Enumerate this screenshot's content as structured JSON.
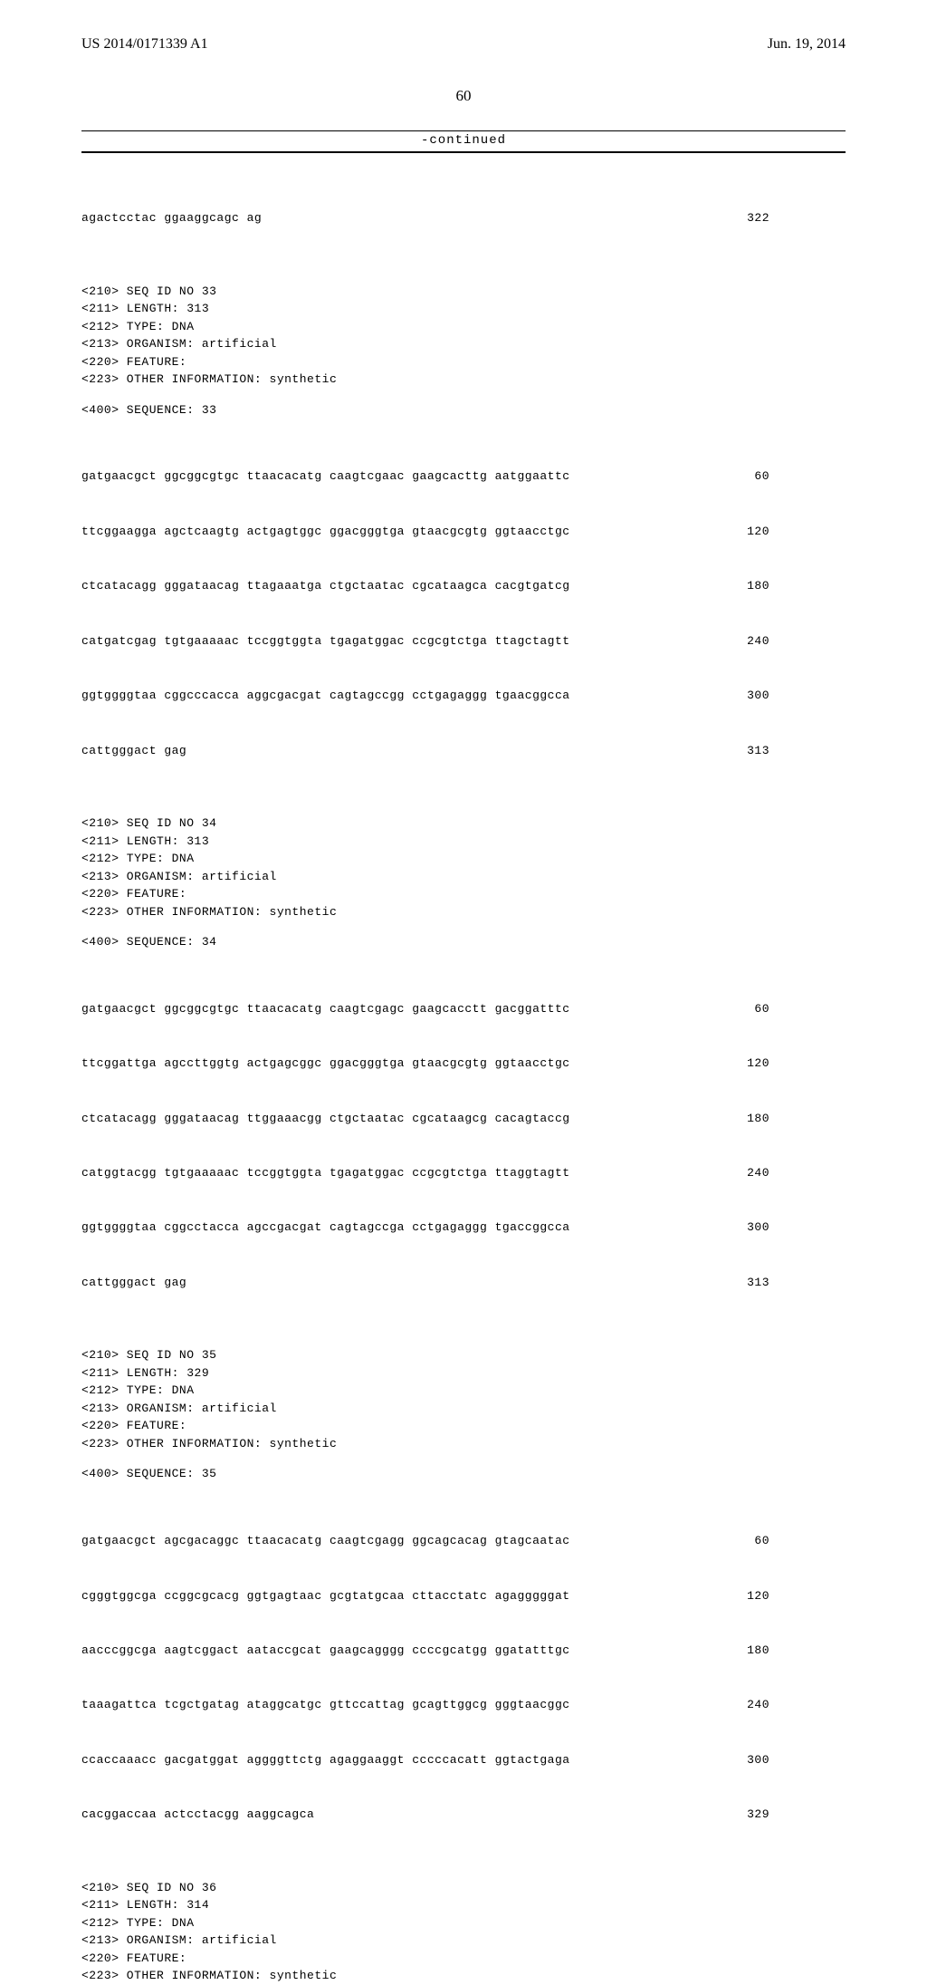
{
  "header": {
    "pub_number": "US 2014/0171339 A1",
    "date": "Jun. 19, 2014"
  },
  "page_number": "60",
  "continued_label": "-continued",
  "sequences": [
    {
      "lines": [
        {
          "seq": "agactcctac ggaaggcagc ag",
          "pos": "322"
        }
      ]
    },
    {
      "meta": [
        "<210> SEQ ID NO 33",
        "<211> LENGTH: 313",
        "<212> TYPE: DNA",
        "<213> ORGANISM: artificial",
        "<220> FEATURE:",
        "<223> OTHER INFORMATION: synthetic"
      ],
      "seq_label": "<400> SEQUENCE: 33",
      "lines": [
        {
          "seq": "gatgaacgct ggcggcgtgc ttaacacatg caagtcgaac gaagcacttg aatggaattc",
          "pos": "60"
        },
        {
          "seq": "ttcggaagga agctcaagtg actgagtggc ggacgggtga gtaacgcgtg ggtaacctgc",
          "pos": "120"
        },
        {
          "seq": "ctcatacagg gggataacag ttagaaatga ctgctaatac cgcataagca cacgtgatcg",
          "pos": "180"
        },
        {
          "seq": "catgatcgag tgtgaaaaac tccggtggta tgagatggac ccgcgtctga ttagctagtt",
          "pos": "240"
        },
        {
          "seq": "ggtggggtaa cggcccacca aggcgacgat cagtagccgg cctgagaggg tgaacggcca",
          "pos": "300"
        },
        {
          "seq": "cattgggact gag",
          "pos": "313"
        }
      ]
    },
    {
      "meta": [
        "<210> SEQ ID NO 34",
        "<211> LENGTH: 313",
        "<212> TYPE: DNA",
        "<213> ORGANISM: artificial",
        "<220> FEATURE:",
        "<223> OTHER INFORMATION: synthetic"
      ],
      "seq_label": "<400> SEQUENCE: 34",
      "lines": [
        {
          "seq": "gatgaacgct ggcggcgtgc ttaacacatg caagtcgagc gaagcacctt gacggatttc",
          "pos": "60"
        },
        {
          "seq": "ttcggattga agccttggtg actgagcggc ggacgggtga gtaacgcgtg ggtaacctgc",
          "pos": "120"
        },
        {
          "seq": "ctcatacagg gggataacag ttggaaacgg ctgctaatac cgcataagcg cacagtaccg",
          "pos": "180"
        },
        {
          "seq": "catggtacgg tgtgaaaaac tccggtggta tgagatggac ccgcgtctga ttaggtagtt",
          "pos": "240"
        },
        {
          "seq": "ggtggggtaa cggcctacca agccgacgat cagtagccga cctgagaggg tgaccggcca",
          "pos": "300"
        },
        {
          "seq": "cattgggact gag",
          "pos": "313"
        }
      ]
    },
    {
      "meta": [
        "<210> SEQ ID NO 35",
        "<211> LENGTH: 329",
        "<212> TYPE: DNA",
        "<213> ORGANISM: artificial",
        "<220> FEATURE:",
        "<223> OTHER INFORMATION: synthetic"
      ],
      "seq_label": "<400> SEQUENCE: 35",
      "lines": [
        {
          "seq": "gatgaacgct agcgacaggc ttaacacatg caagtcgagg ggcagcacag gtagcaatac",
          "pos": "60"
        },
        {
          "seq": "cgggtggcga ccggcgcacg ggtgagtaac gcgtatgcaa cttacctatc agagggggat",
          "pos": "120"
        },
        {
          "seq": "aacccggcga aagtcggact aataccgcat gaagcagggg ccccgcatgg ggatatttgc",
          "pos": "180"
        },
        {
          "seq": "taaagattca tcgctgatag ataggcatgc gttccattag gcagttggcg gggtaacggc",
          "pos": "240"
        },
        {
          "seq": "ccaccaaacc gacgatggat aggggttctg agaggaaggt cccccacatt ggtactgaga",
          "pos": "300"
        },
        {
          "seq": "cacggaccaa actcctacgg aaggcagca",
          "pos": "329"
        }
      ]
    },
    {
      "meta": [
        "<210> SEQ ID NO 36",
        "<211> LENGTH: 314",
        "<212> TYPE: DNA",
        "<213> ORGANISM: artificial",
        "<220> FEATURE:",
        "<223> OTHER INFORMATION: synthetic"
      ]
    }
  ]
}
